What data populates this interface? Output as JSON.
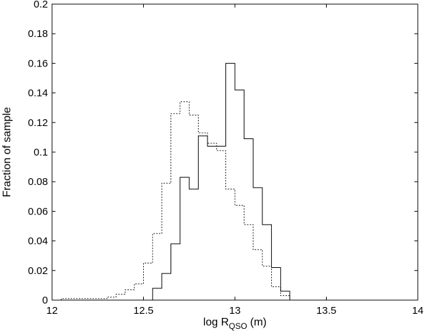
{
  "chart_data": {
    "type": "histogram",
    "xlabel_main": "log R",
    "xlabel_sub": "QSO",
    "xlabel_unit": " (m)",
    "ylabel": "Fraction of sample",
    "xlim": [
      12,
      14
    ],
    "ylim": [
      0,
      0.2
    ],
    "xticks": [
      "12",
      "12.5",
      "13",
      "13.5",
      "14"
    ],
    "xtick_values": [
      12,
      12.5,
      13,
      13.5,
      14
    ],
    "yticks": [
      "0",
      "0.02",
      "0.04",
      "0.06",
      "0.08",
      "0.1",
      "0.12",
      "0.14",
      "0.16",
      "0.18",
      "0.2"
    ],
    "ytick_values": [
      0,
      0.02,
      0.04,
      0.06,
      0.08,
      0.1,
      0.12,
      0.14,
      0.16,
      0.18,
      0.2
    ],
    "grid": false,
    "bin_edges": [
      12.05,
      12.1,
      12.15,
      12.2,
      12.25,
      12.3,
      12.35,
      12.4,
      12.45,
      12.5,
      12.55,
      12.6,
      12.65,
      12.7,
      12.75,
      12.8,
      12.85,
      12.9,
      12.95,
      13.0,
      13.05,
      13.1,
      13.15,
      13.2,
      13.25,
      13.3,
      13.35,
      13.4
    ],
    "series": [
      {
        "style": "solid",
        "values": [
          0,
          0,
          0,
          0,
          0,
          0,
          0,
          0,
          0,
          0,
          0.008,
          0.018,
          0.038,
          0.083,
          0.075,
          0.111,
          0.104,
          0.104,
          0.16,
          0.142,
          0.109,
          0.076,
          0.051,
          0.022,
          0.006,
          0,
          0
        ]
      },
      {
        "style": "dotted",
        "values": [
          0.001,
          0.001,
          0.001,
          0.001,
          0.001,
          0.002,
          0.004,
          0.007,
          0.011,
          0.025,
          0.045,
          0.079,
          0.126,
          0.134,
          0.125,
          0.113,
          0.106,
          0.101,
          0.075,
          0.064,
          0.051,
          0.034,
          0.023,
          0.009,
          0.003,
          0,
          0
        ]
      }
    ]
  }
}
